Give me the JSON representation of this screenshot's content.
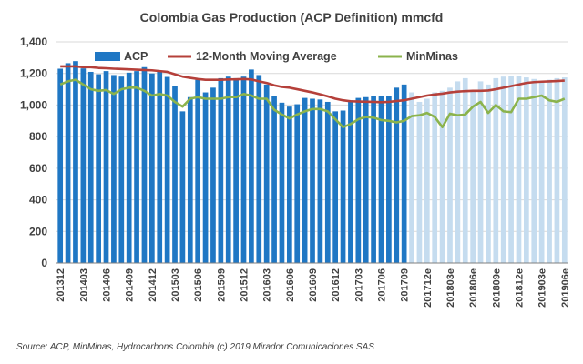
{
  "chart_data": {
    "type": "bar",
    "title": "Colombia Gas Production (ACP Definition) mmcfd",
    "ylim": [
      0,
      1400
    ],
    "y_ticks": [
      0,
      200,
      400,
      600,
      800,
      1000,
      1200,
      1400
    ],
    "y_tick_labels": [
      "0",
      "200",
      "400",
      "600",
      "800",
      "1,000",
      "1,200",
      "1,400"
    ],
    "grid": "horizontal",
    "legend_position": "top",
    "x_tick_labels": [
      "201312",
      "201403",
      "201406",
      "201409",
      "201412",
      "201503",
      "201506",
      "201509",
      "201512",
      "201603",
      "201606",
      "201609",
      "201612",
      "201703",
      "201706",
      "201709",
      "201712e",
      "201803e",
      "201806e",
      "201809e",
      "201812e",
      "201903e",
      "201906e"
    ],
    "x_tick_every": 3,
    "actual_count": 46,
    "colors": {
      "actual": "#1f77c4",
      "estimate": "#c5dcef",
      "moving_average": "#b5403a",
      "minminas": "#8bb34c",
      "grid": "#d9d9d9",
      "axis": "#7f7f7f"
    },
    "series": [
      {
        "name": "ACP",
        "type": "bar",
        "values": [
          1230,
          1265,
          1278,
          1232,
          1210,
          1195,
          1215,
          1190,
          1180,
          1205,
          1215,
          1240,
          1200,
          1210,
          1178,
          1120,
          960,
          1050,
          1160,
          1080,
          1110,
          1170,
          1180,
          1170,
          1180,
          1225,
          1190,
          1130,
          1060,
          1015,
          990,
          1005,
          1045,
          1040,
          1035,
          1020,
          960,
          965,
          1030,
          1045,
          1050,
          1060,
          1055,
          1060,
          1110,
          1130,
          1080,
          1020,
          1040,
          1080,
          1090,
          1110,
          1150,
          1170,
          1090,
          1150,
          1130,
          1170,
          1180,
          1185,
          1185,
          1175,
          1165,
          1150,
          1160,
          1170,
          1175
        ]
      },
      {
        "name": "12-Month Moving Average",
        "type": "line",
        "values": [
          1245,
          1245,
          1245,
          1240,
          1240,
          1235,
          1233,
          1230,
          1228,
          1226,
          1224,
          1222,
          1220,
          1215,
          1210,
          1195,
          1180,
          1172,
          1165,
          1160,
          1160,
          1160,
          1162,
          1163,
          1165,
          1162,
          1150,
          1140,
          1125,
          1115,
          1110,
          1100,
          1090,
          1080,
          1068,
          1055,
          1040,
          1030,
          1024,
          1022,
          1021,
          1020,
          1018,
          1020,
          1025,
          1030,
          1040,
          1050,
          1060,
          1067,
          1072,
          1080,
          1085,
          1088,
          1090,
          1090,
          1092,
          1100,
          1110,
          1120,
          1130,
          1140,
          1145,
          1148,
          1150,
          1152,
          1155
        ]
      },
      {
        "name": "MinMinas",
        "type": "line",
        "values": [
          1130,
          1150,
          1160,
          1130,
          1100,
          1090,
          1095,
          1070,
          1100,
          1110,
          1110,
          1090,
          1060,
          1070,
          1060,
          1020,
          990,
          1040,
          1050,
          1040,
          1040,
          1040,
          1050,
          1050,
          1070,
          1060,
          1040,
          1040,
          970,
          940,
          915,
          940,
          960,
          975,
          975,
          960,
          910,
          860,
          880,
          910,
          925,
          920,
          905,
          900,
          890,
          900,
          930,
          935,
          950,
          925,
          860,
          945,
          935,
          940,
          990,
          1020,
          950,
          1000,
          960,
          955,
          1040,
          1040,
          1050,
          1060,
          1030,
          1020,
          1040
        ]
      }
    ]
  },
  "source_text": "Source: ACP, MinMinas, Hydrocarbons Colombia (c) 2019 Mirador Comunicaciones SAS"
}
